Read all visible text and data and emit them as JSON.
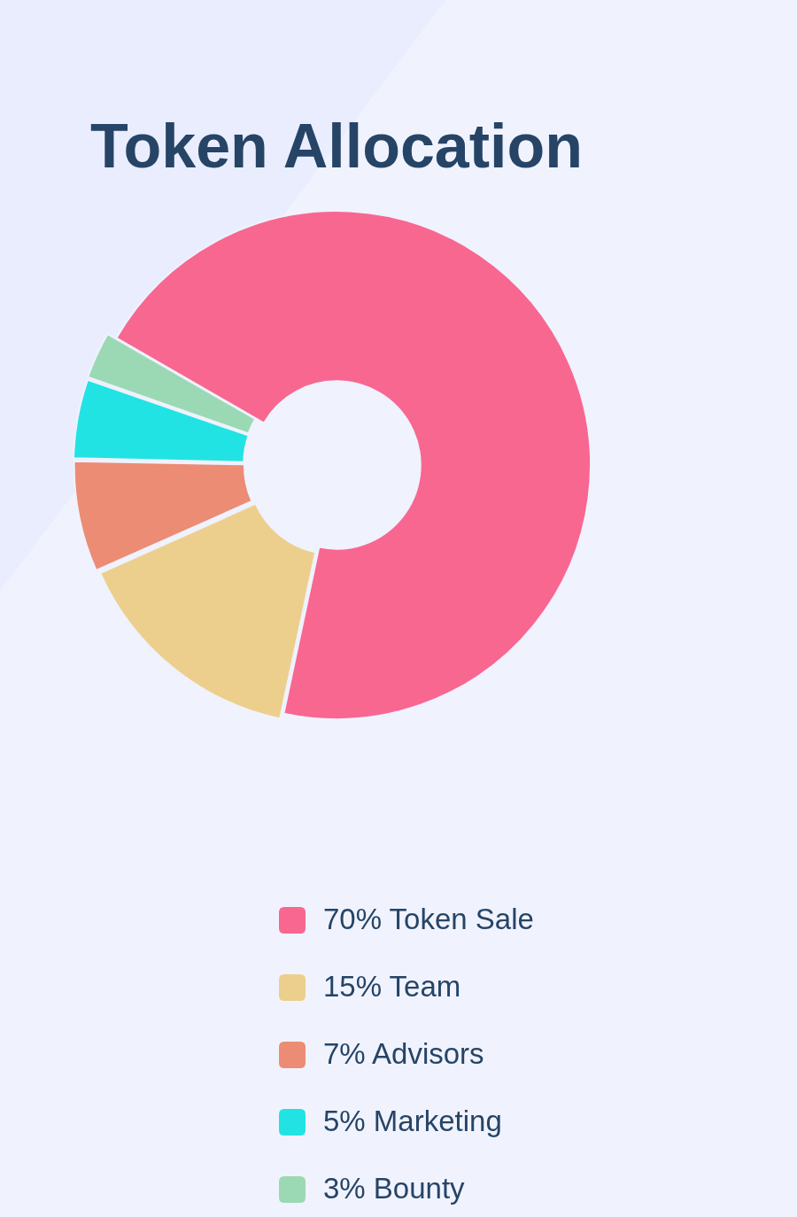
{
  "chart_data": {
    "type": "donut",
    "title": "Token Allocation",
    "categories": [
      "70% Token Sale",
      "15% Team",
      "7% Advisors",
      "5% Marketing",
      "3% Bounty"
    ],
    "values": [
      70,
      15,
      7,
      5,
      3
    ],
    "colors": [
      "#f86790",
      "#edcf8d",
      "#ec8c74",
      "#22e3e3",
      "#9ad9b4"
    ],
    "legend": "bottom"
  }
}
